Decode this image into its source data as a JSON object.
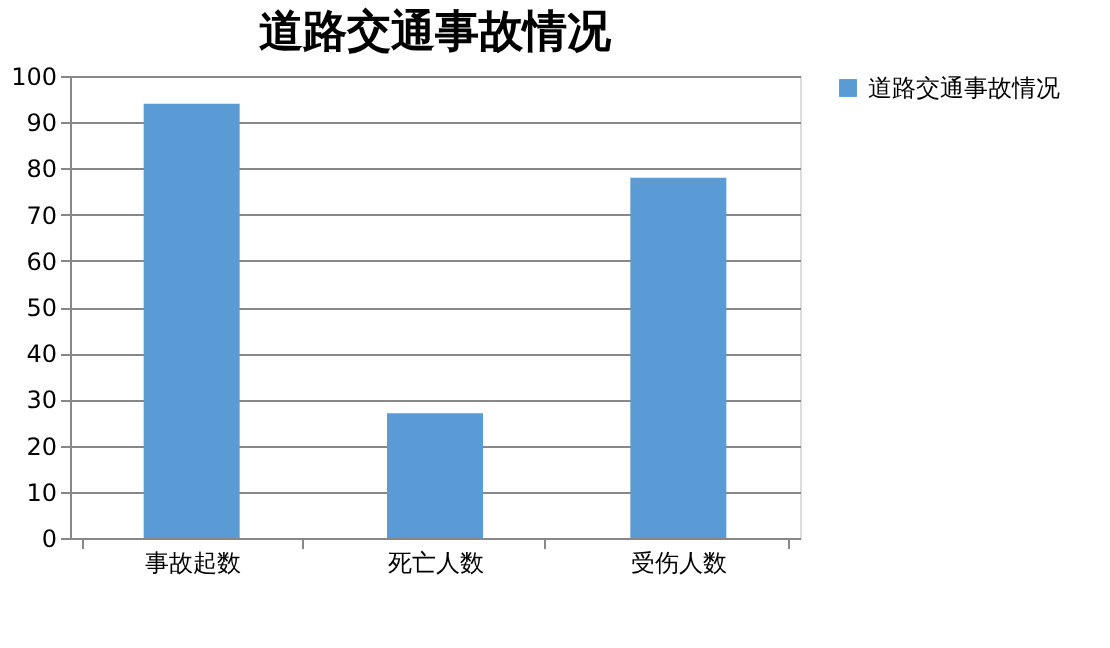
{
  "chart_data": {
    "type": "bar",
    "title": "道路交通事故情况",
    "categories": [
      "事故起数",
      "死亡人数",
      "受伤人数"
    ],
    "series": [
      {
        "name": "道路交通事故情况",
        "color": "#5b9bd5",
        "values": [
          94,
          27,
          78
        ]
      }
    ],
    "ylim": [
      0,
      100
    ],
    "yticks": [
      0,
      10,
      20,
      30,
      40,
      50,
      60,
      70,
      80,
      90,
      100
    ],
    "grid": "y",
    "legend": "right"
  }
}
